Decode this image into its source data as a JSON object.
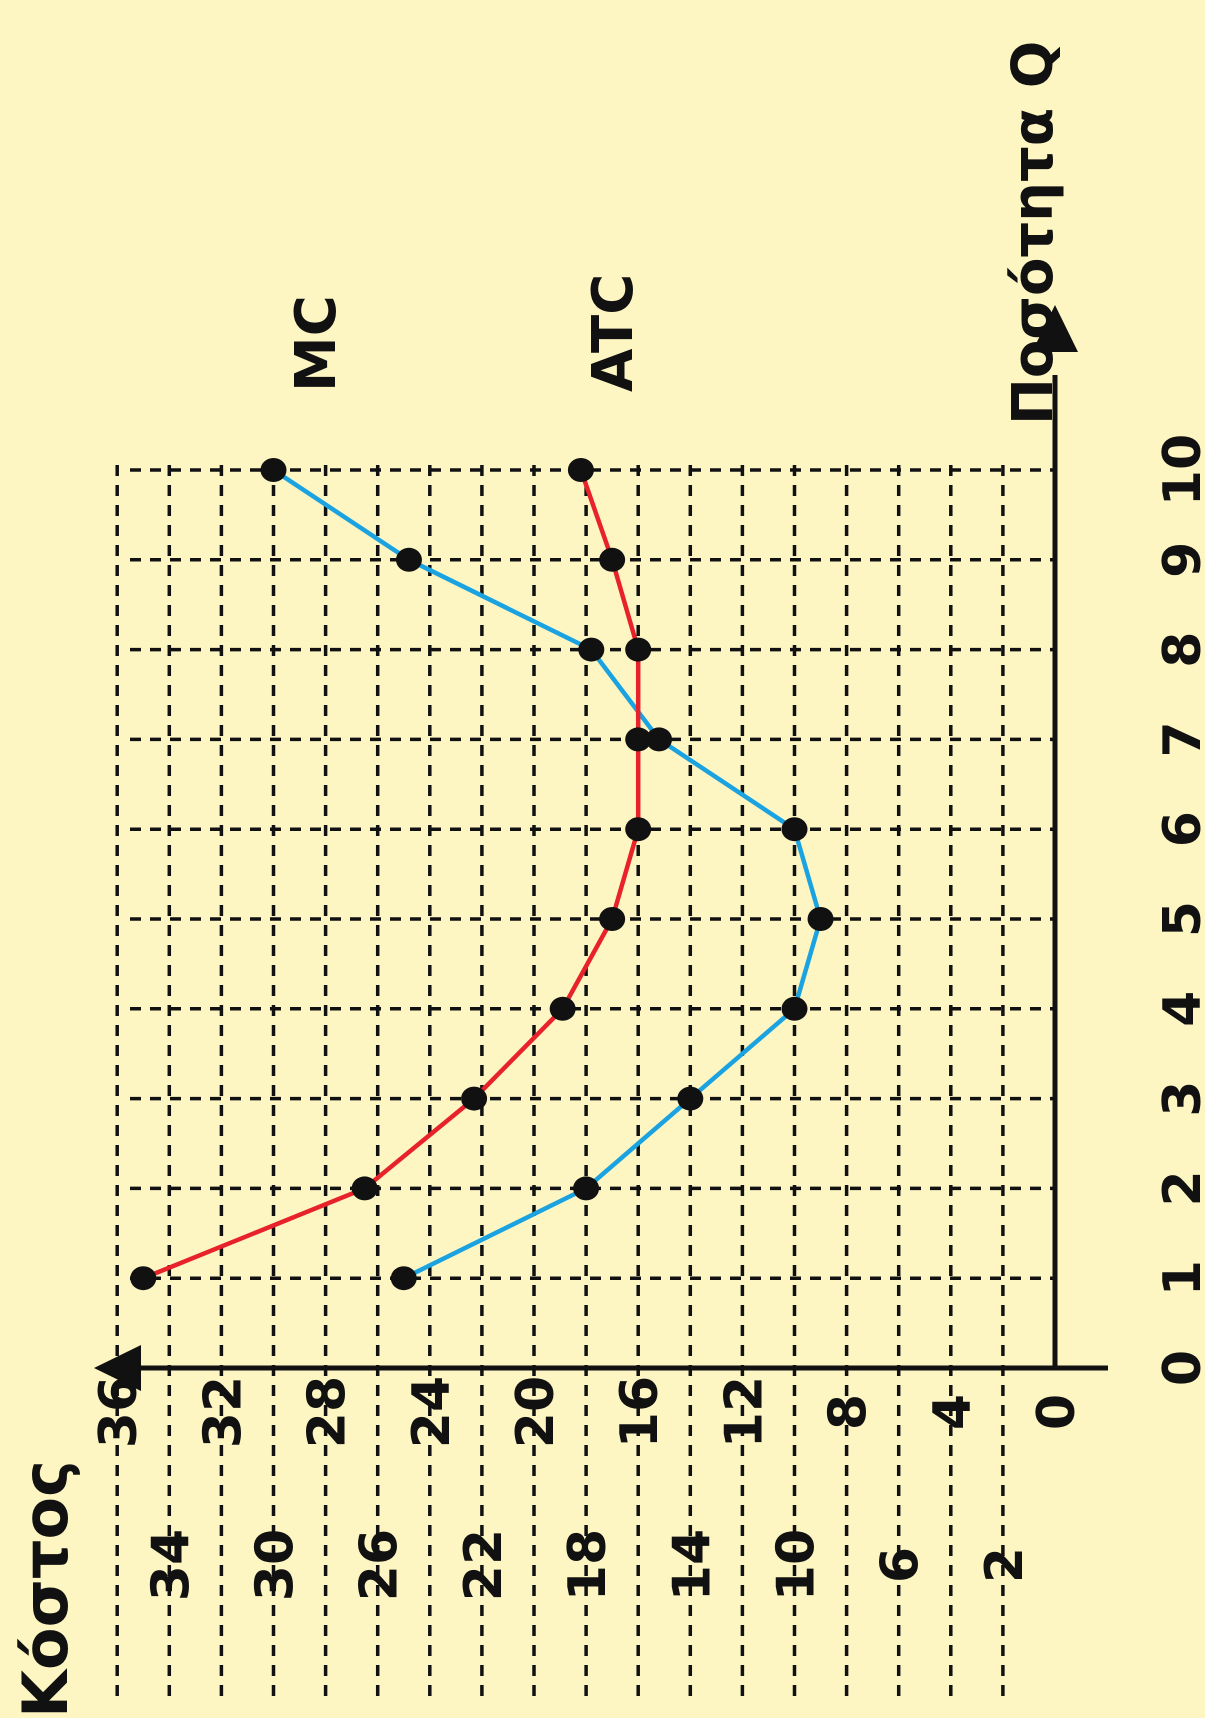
{
  "chart_data": {
    "type": "line",
    "xlabel": "Ποσότητα Q",
    "ylabel": "Κόστος",
    "x": [
      1,
      2,
      3,
      4,
      5,
      6,
      7,
      8,
      9,
      10
    ],
    "x_ticks": [
      "0",
      "1",
      "2",
      "3",
      "4",
      "5",
      "6",
      "7",
      "8",
      "9",
      "10"
    ],
    "y_ticks_outer": [
      "34",
      "30",
      "26",
      "22",
      "18",
      "14",
      "10",
      "6",
      "2"
    ],
    "y_ticks_inner": [
      "36",
      "32",
      "28",
      "24",
      "20",
      "16",
      "12",
      "8",
      "4",
      "0"
    ],
    "xlim": [
      0,
      10
    ],
    "ylim": [
      0,
      36
    ],
    "grid": true,
    "series": [
      {
        "name": "MC",
        "color": "#1aa3e0",
        "values": [
          25,
          18,
          14,
          10,
          9,
          10,
          15.2,
          17.8,
          24.8,
          30
        ]
      },
      {
        "name": "ATC",
        "color": "#e8222a",
        "values": [
          35,
          26.5,
          22.3,
          18.9,
          17,
          16,
          16,
          16,
          17,
          18.2
        ]
      }
    ]
  }
}
